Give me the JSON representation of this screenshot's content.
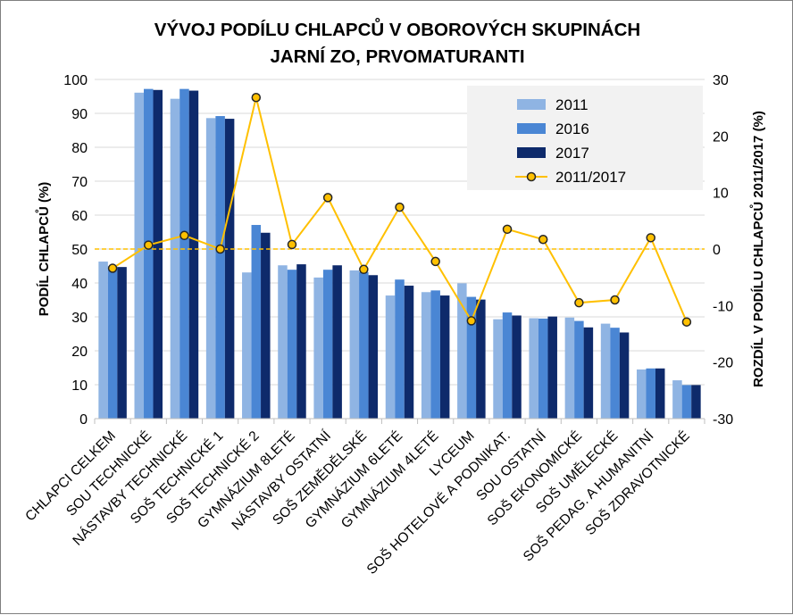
{
  "chart_data": {
    "type": "bar",
    "title": "VÝVOJ PODÍLU CHLAPCŮ V OBOROVÝCH SKUPINÁCH",
    "subtitle": "JARNÍ ZO, PRVOMATURANTI",
    "ylabel": "PODÍL CHLAPCŮ (%)",
    "y2label": "ROZDÍL V PODÍLU CHLAPCŮ 2011/2017 (%)",
    "ylim": [
      0,
      100
    ],
    "y2lim": [
      -30,
      30
    ],
    "yticks": [
      "0",
      "10",
      "20",
      "30",
      "40",
      "50",
      "60",
      "70",
      "80",
      "90",
      "100"
    ],
    "y2ticks": [
      "-30",
      "-20",
      "-10",
      "0",
      "10",
      "20",
      "30"
    ],
    "grid": true,
    "legend_position": "top-right",
    "categories": [
      "CHLAPCI CELKEM",
      "SOU TECHNICKÉ",
      "NÁSTAVBY TECHNICKÉ",
      "SOŠ TECHNICKÉ 1",
      "SOŠ TECHNICKÉ 2",
      "GYMNÁZIUM 8LETÉ",
      "NÁSTAVBY OSTATNÍ",
      "SOŠ ZEMĚDĚLSKÉ",
      "GYMNÁZIUM 6LETÉ",
      "GYMNÁZIUM 4LETÉ",
      "LYCEUM",
      "SOŠ HOTELOVÉ A PODNIKAT.",
      "SOU OSTATNÍ",
      "SOŠ EKONOMICKÉ",
      "SOŠ UMĚLECKÉ",
      "SOŠ PEDAG. A HUMANITNÍ",
      "SOŠ ZDRAVOTNICKÉ"
    ],
    "series": [
      {
        "name": "2011",
        "type": "bar",
        "color": "#8fb4e3",
        "values": [
          46.3,
          96.1,
          94.3,
          88.6,
          43.1,
          45.2,
          41.6,
          43.7,
          36.3,
          37.3,
          39.9,
          29.3,
          29.6,
          29.8,
          28.0,
          14.5,
          11.3
        ]
      },
      {
        "name": "2016",
        "type": "bar",
        "color": "#4a86d4",
        "values": [
          44.9,
          97.2,
          97.2,
          89.2,
          57.1,
          43.9,
          43.9,
          43.2,
          41.0,
          37.8,
          35.9,
          31.3,
          29.5,
          28.8,
          26.8,
          14.8,
          9.9
        ]
      },
      {
        "name": "2017",
        "type": "bar",
        "color": "#0e2a6b",
        "values": [
          44.7,
          96.9,
          96.7,
          88.4,
          54.8,
          45.5,
          45.2,
          42.3,
          39.2,
          36.3,
          35.1,
          30.4,
          30.1,
          26.9,
          25.4,
          14.8,
          9.9
        ]
      },
      {
        "name": "2011/2017",
        "type": "line",
        "axis": "secondary",
        "color": "#ffc000",
        "marker_color": "#ffc000",
        "marker_edge": "#262626",
        "values": [
          -3.4,
          0.7,
          2.4,
          0.0,
          26.8,
          0.8,
          9.1,
          -3.6,
          7.4,
          -2.2,
          -12.7,
          3.5,
          1.7,
          -9.5,
          -9.0,
          2.0,
          -12.9
        ]
      }
    ],
    "reference_line": {
      "axis": "secondary",
      "value": 0,
      "color": "#ffc000",
      "style": "dashed"
    }
  }
}
